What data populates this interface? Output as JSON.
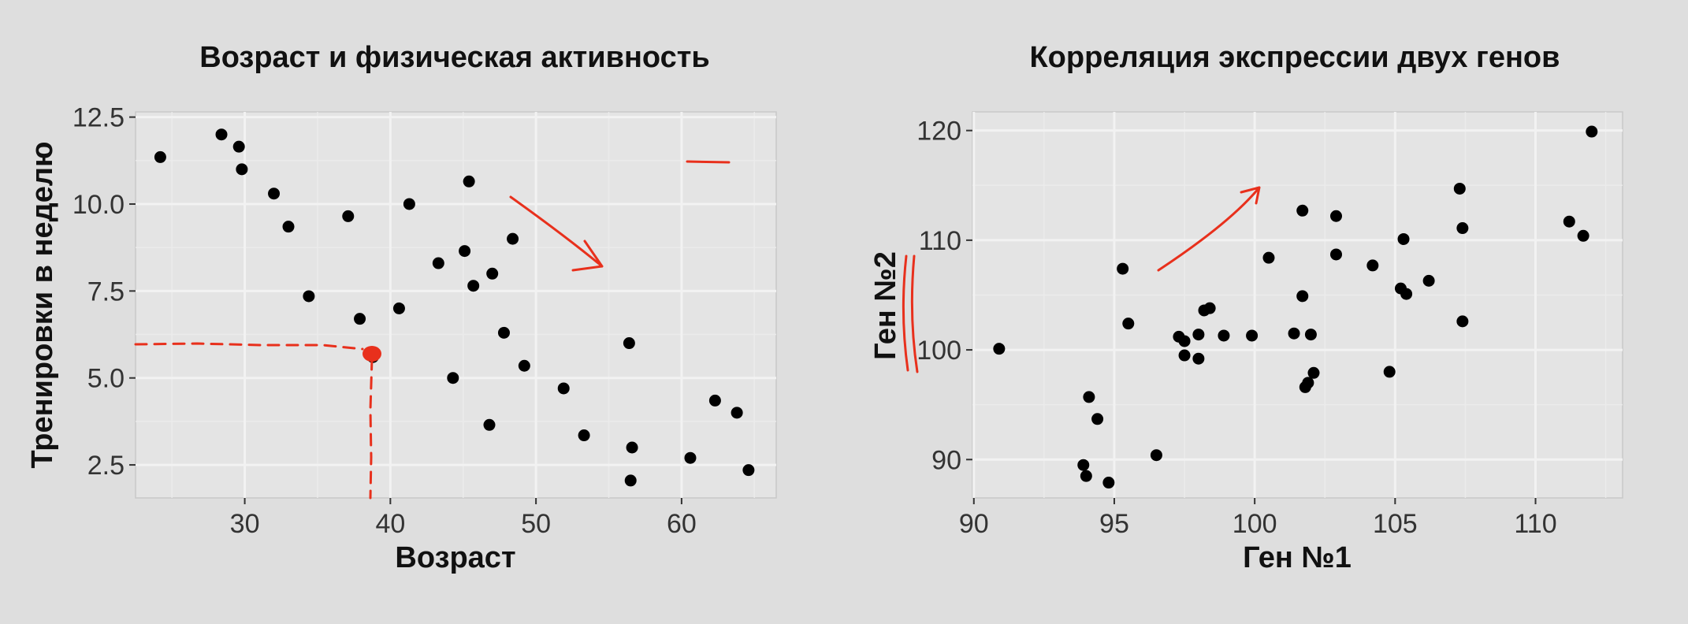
{
  "chart_data": [
    {
      "type": "scatter",
      "title": "Возраст и физическая активность",
      "xlabel": "Возраст",
      "ylabel": "Тренировки в неделю",
      "xlim": [
        22.5,
        66.5
      ],
      "ylim": [
        1.55,
        12.65
      ],
      "xticks": [
        30,
        40,
        50,
        60
      ],
      "xtick_labels": [
        "30",
        "40",
        "50",
        "60"
      ],
      "yticks": [
        2.5,
        5.0,
        7.5,
        10.0,
        12.5
      ],
      "ytick_labels": [
        "2.5",
        "5.0",
        "7.5",
        "10.0",
        "12.5"
      ],
      "grid": true,
      "annotation_color": "#e8301c",
      "points": [
        {
          "x": 24.2,
          "y": 11.35
        },
        {
          "x": 28.4,
          "y": 12.0
        },
        {
          "x": 29.6,
          "y": 11.65
        },
        {
          "x": 29.8,
          "y": 11.0
        },
        {
          "x": 32.0,
          "y": 10.3
        },
        {
          "x": 33.0,
          "y": 9.35
        },
        {
          "x": 34.4,
          "y": 7.35
        },
        {
          "x": 37.1,
          "y": 9.65
        },
        {
          "x": 37.9,
          "y": 6.7
        },
        {
          "x": 38.8,
          "y": 5.6
        },
        {
          "x": 40.6,
          "y": 7.0
        },
        {
          "x": 41.3,
          "y": 10.0
        },
        {
          "x": 43.3,
          "y": 8.3
        },
        {
          "x": 44.3,
          "y": 5.0
        },
        {
          "x": 45.1,
          "y": 8.65
        },
        {
          "x": 45.4,
          "y": 10.65
        },
        {
          "x": 45.7,
          "y": 7.65
        },
        {
          "x": 46.8,
          "y": 3.65
        },
        {
          "x": 47.0,
          "y": 8.0
        },
        {
          "x": 47.8,
          "y": 6.3
        },
        {
          "x": 48.4,
          "y": 9.0
        },
        {
          "x": 49.2,
          "y": 5.35
        },
        {
          "x": 51.9,
          "y": 4.7
        },
        {
          "x": 53.3,
          "y": 3.35
        },
        {
          "x": 56.4,
          "y": 6.0
        },
        {
          "x": 56.6,
          "y": 3.0
        },
        {
          "x": 56.5,
          "y": 2.05
        },
        {
          "x": 60.6,
          "y": 2.7
        },
        {
          "x": 62.3,
          "y": 4.35
        },
        {
          "x": 63.8,
          "y": 4.0
        },
        {
          "x": 64.6,
          "y": 2.35
        }
      ]
    },
    {
      "type": "scatter",
      "title": "Корреляция экспрессии двух генов",
      "xlabel": "Ген №1",
      "ylabel": "Ген №2",
      "xlim": [
        89.95,
        113.1
      ],
      "ylim": [
        86.5,
        121.7
      ],
      "xticks": [
        90,
        95,
        100,
        105,
        110
      ],
      "xtick_labels": [
        "90",
        "95",
        "100",
        "105",
        "110"
      ],
      "yticks": [
        90,
        100,
        110,
        120
      ],
      "ytick_labels": [
        "90",
        "100",
        "110",
        "120"
      ],
      "grid": true,
      "annotation_color": "#e8301c",
      "points": [
        {
          "x": 90.9,
          "y": 100.1
        },
        {
          "x": 93.9,
          "y": 89.5
        },
        {
          "x": 94.0,
          "y": 88.5
        },
        {
          "x": 94.1,
          "y": 95.7
        },
        {
          "x": 94.4,
          "y": 93.7
        },
        {
          "x": 94.8,
          "y": 87.9
        },
        {
          "x": 95.3,
          "y": 107.4
        },
        {
          "x": 95.5,
          "y": 102.4
        },
        {
          "x": 96.5,
          "y": 90.4
        },
        {
          "x": 97.3,
          "y": 101.2
        },
        {
          "x": 97.5,
          "y": 100.8
        },
        {
          "x": 97.5,
          "y": 99.5
        },
        {
          "x": 98.0,
          "y": 101.4
        },
        {
          "x": 98.0,
          "y": 99.2
        },
        {
          "x": 98.2,
          "y": 103.6
        },
        {
          "x": 98.4,
          "y": 103.8
        },
        {
          "x": 98.9,
          "y": 101.3
        },
        {
          "x": 99.9,
          "y": 101.3
        },
        {
          "x": 100.5,
          "y": 108.4
        },
        {
          "x": 101.4,
          "y": 101.5
        },
        {
          "x": 101.7,
          "y": 112.7
        },
        {
          "x": 101.7,
          "y": 104.9
        },
        {
          "x": 101.8,
          "y": 96.6
        },
        {
          "x": 101.9,
          "y": 97.0
        },
        {
          "x": 102.0,
          "y": 101.4
        },
        {
          "x": 102.1,
          "y": 97.9
        },
        {
          "x": 102.9,
          "y": 112.2
        },
        {
          "x": 102.9,
          "y": 108.7
        },
        {
          "x": 104.2,
          "y": 107.7
        },
        {
          "x": 104.8,
          "y": 98.0
        },
        {
          "x": 105.2,
          "y": 105.6
        },
        {
          "x": 105.3,
          "y": 110.1
        },
        {
          "x": 105.4,
          "y": 105.1
        },
        {
          "x": 106.2,
          "y": 106.3
        },
        {
          "x": 107.3,
          "y": 114.7
        },
        {
          "x": 107.4,
          "y": 111.1
        },
        {
          "x": 107.4,
          "y": 102.6
        },
        {
          "x": 111.2,
          "y": 111.7
        },
        {
          "x": 111.7,
          "y": 110.4
        },
        {
          "x": 112.0,
          "y": 119.9
        }
      ]
    }
  ]
}
